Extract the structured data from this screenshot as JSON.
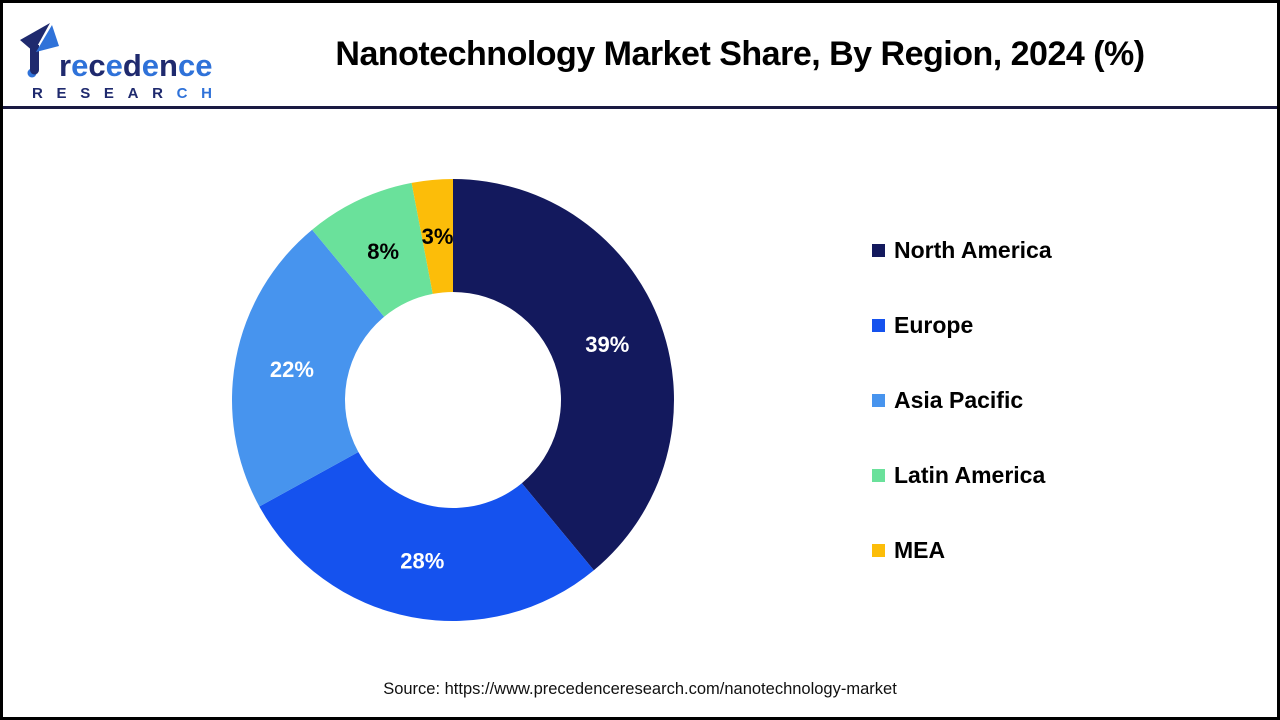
{
  "header": {
    "logo": {
      "brand": "Precedence",
      "brand_rest_letters": [
        "r",
        "e",
        "c",
        "e",
        "d",
        "e",
        "n",
        "c",
        "e"
      ],
      "brand_rest_colors": [
        "#1f2a6e",
        "#2f72d9",
        "#1f2a6e",
        "#2f72d9",
        "#1f2a6e",
        "#2f72d9",
        "#1f2a6e",
        "#2f72d9",
        "#2f72d9"
      ],
      "brand_sub_letters": [
        "R",
        "E",
        "S",
        "E",
        "A",
        "R",
        "C",
        "H"
      ],
      "brand_sub_colors": [
        "#1f2a6e",
        "#1f2a6e",
        "#1f2a6e",
        "#1f2a6e",
        "#1f2a6e",
        "#1f2a6e",
        "#2f72d9",
        "#2f72d9"
      ]
    },
    "title": "Nanotechnology Market Share, By Region, 2024 (%)"
  },
  "chart_data": {
    "type": "pie",
    "subtype": "donut",
    "title": "Nanotechnology Market Share, By Region, 2024 (%)",
    "categories": [
      "North America",
      "Europe",
      "Asia Pacific",
      "Latin America",
      "MEA"
    ],
    "values": [
      39,
      28,
      22,
      8,
      3
    ],
    "unit": "%",
    "colors": [
      "#13195d",
      "#1552ee",
      "#4794ee",
      "#6ae19b",
      "#fcbd09"
    ],
    "label_colors": [
      "#ffffff",
      "#ffffff",
      "#ffffff",
      "#000000",
      "#000000"
    ],
    "start_angle_deg": 0,
    "direction": "clockwise",
    "donut_hole_ratio": 0.49,
    "legend_position": "right"
  },
  "footer": {
    "source": "Source: https://www.precedenceresearch.com/nanotechnology-market"
  },
  "theme": {
    "brand_navy": "#1f2a6e",
    "brand_blue": "#2f72d9",
    "divider": "#1a1a42",
    "frame_border": "#000000"
  }
}
